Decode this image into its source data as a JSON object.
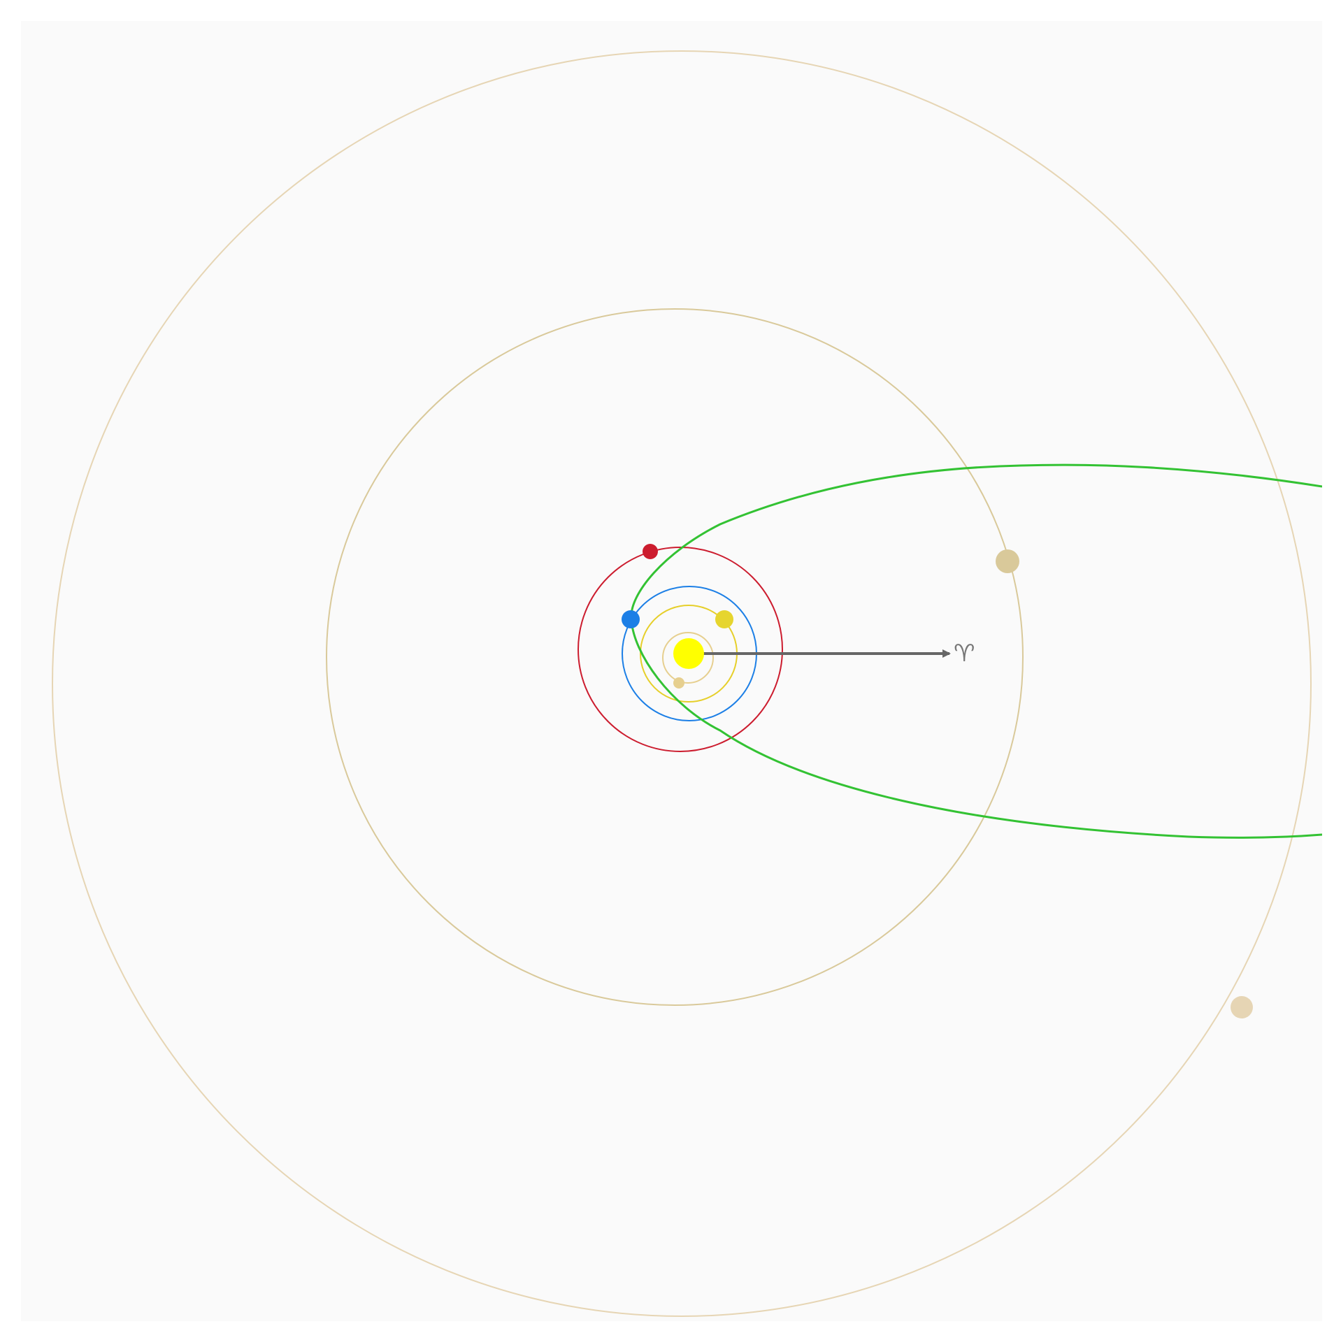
{
  "diagram": {
    "background_color": "#fafafa",
    "page_color": "#ffffff",
    "center_body": {
      "name": "sun",
      "color": "#ffff00"
    },
    "vernal_equinox": {
      "symbol": "♈",
      "color": "#777777",
      "arrow_color": "#666666"
    },
    "planets": [
      {
        "name": "mercury",
        "orbit_color": "#e6cf8f",
        "body_color": "#e6cf8f"
      },
      {
        "name": "venus",
        "orbit_color": "#e6cf2a",
        "body_color": "#e6d52e"
      },
      {
        "name": "earth",
        "orbit_color": "#1c7fe6",
        "body_color": "#1c7fe6"
      },
      {
        "name": "mars",
        "orbit_color": "#cc1c2e",
        "body_color": "#cc1c2e"
      },
      {
        "name": "jupiter",
        "orbit_color": "#d9c99a",
        "body_color": "#d9c99a"
      },
      {
        "name": "saturn",
        "orbit_color": "#e6d5b4",
        "body_color": "#e6d5b4"
      }
    ],
    "comet": {
      "name": "comet-orbit",
      "color": "#33c233"
    }
  }
}
